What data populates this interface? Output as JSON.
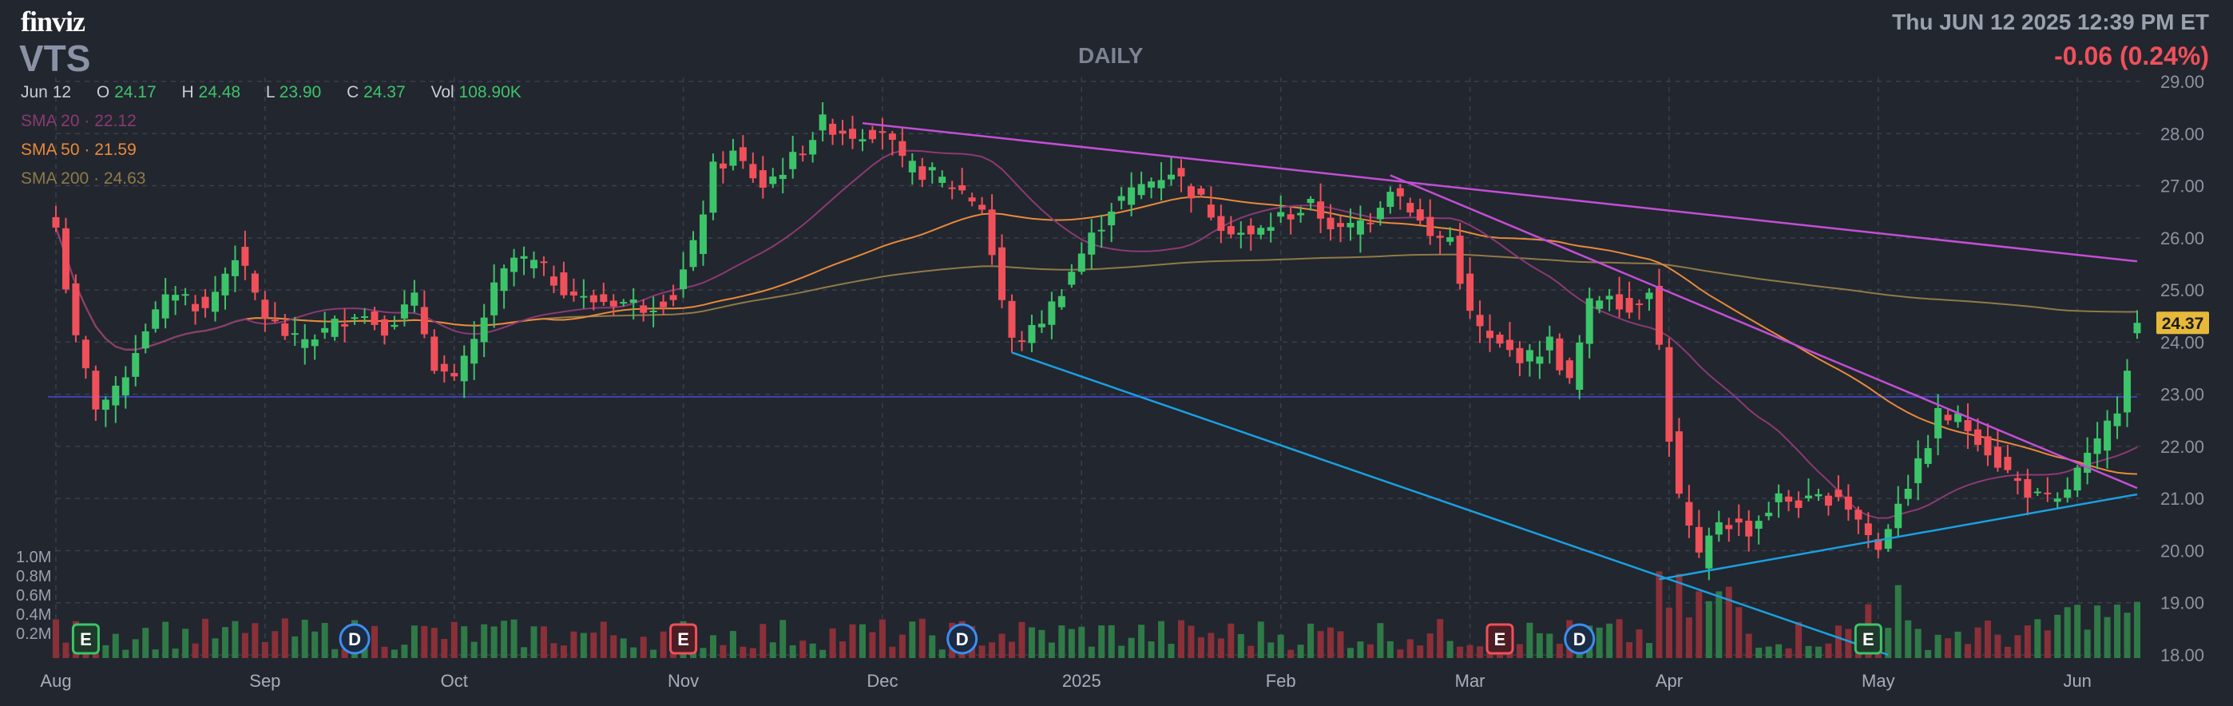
{
  "header": {
    "logo": "finviz",
    "ticker": "VTS",
    "timeframe": "DAILY",
    "datetime": "Thu JUN 12 2025 12:39 PM ET",
    "change": "-0.06 (0.24%)"
  },
  "ohlc": {
    "date": "Jun 12",
    "open_label": "O",
    "open": "24.17",
    "high_label": "H",
    "high": "24.48",
    "low_label": "L",
    "low": "23.90",
    "close_label": "C",
    "close": "24.37",
    "vol_label": "Vol",
    "volume": "108.90K"
  },
  "sma": [
    {
      "label": "SMA 20",
      "value": "22.12",
      "color": "#8a3a74"
    },
    {
      "label": "SMA 50",
      "value": "21.59",
      "color": "#e88a3a"
    },
    {
      "label": "SMA 200",
      "value": "24.63",
      "color": "#8f7a48"
    }
  ],
  "colors": {
    "background": "#22262f",
    "grid": "#3a3f4b",
    "up": "#3cc46a",
    "down": "#f0505a",
    "trendline_magenta": "#c34fd4",
    "trendline_blue": "#1aa0e0",
    "price_tag_bg": "#e6b93a"
  },
  "chart_data": {
    "type": "candlestick",
    "y_axis": {
      "min": 18,
      "max": 29,
      "ticks": [
        "18.00",
        "19.00",
        "20.00",
        "21.00",
        "22.00",
        "23.00",
        "24.00",
        "25.00",
        "26.00",
        "27.00",
        "28.00",
        "29.00"
      ]
    },
    "volume_axis": {
      "ticks": [
        "0.2M",
        "0.4M",
        "0.6M",
        "0.8M",
        "1.0M"
      ]
    },
    "x_ticks": [
      {
        "label": "Aug",
        "index": 0
      },
      {
        "label": "Sep",
        "index": 21
      },
      {
        "label": "Oct",
        "index": 40
      },
      {
        "label": "Nov",
        "index": 63
      },
      {
        "label": "Dec",
        "index": 83
      },
      {
        "label": "2025",
        "index": 103
      },
      {
        "label": "Feb",
        "index": 123
      },
      {
        "label": "Mar",
        "index": 142
      },
      {
        "label": "Apr",
        "index": 162
      },
      {
        "label": "May",
        "index": 183
      },
      {
        "label": "Jun",
        "index": 203
      }
    ],
    "last_price": "24.37",
    "horizontal_line": 22.95,
    "trendlines": [
      {
        "color": "magenta",
        "from": {
          "index": 81,
          "price": 28.2
        },
        "to": {
          "index": 209,
          "price": 25.55
        }
      },
      {
        "color": "magenta",
        "from": {
          "index": 134,
          "price": 27.2
        },
        "to": {
          "index": 209,
          "price": 21.2
        }
      },
      {
        "color": "blue",
        "from": {
          "index": 96,
          "price": 23.8
        },
        "to": {
          "index": 184,
          "price": 18.0
        }
      },
      {
        "color": "blue",
        "from": {
          "index": 161,
          "price": 19.45
        },
        "to": {
          "index": 209,
          "price": 21.08
        }
      }
    ],
    "events": [
      {
        "type": "E",
        "color": "green",
        "index": 3
      },
      {
        "type": "D",
        "color": "blue",
        "index": 30
      },
      {
        "type": "E",
        "color": "red",
        "index": 63
      },
      {
        "type": "D",
        "color": "blue",
        "index": 91
      },
      {
        "type": "E",
        "color": "red",
        "index": 145
      },
      {
        "type": "D",
        "color": "blue",
        "index": 153
      },
      {
        "type": "E",
        "color": "green",
        "index": 182
      }
    ],
    "anchors": [
      [
        0,
        26.2
      ],
      [
        2,
        24.0
      ],
      [
        4,
        22.8
      ],
      [
        6,
        23.0
      ],
      [
        9,
        24.3
      ],
      [
        12,
        25.0
      ],
      [
        15,
        24.6
      ],
      [
        18,
        25.7
      ],
      [
        21,
        24.5
      ],
      [
        24,
        24.0
      ],
      [
        27,
        24.2
      ],
      [
        30,
        24.6
      ],
      [
        33,
        24.3
      ],
      [
        36,
        24.8
      ],
      [
        38,
        23.6
      ],
      [
        40,
        23.2
      ],
      [
        42,
        24.0
      ],
      [
        44,
        25.0
      ],
      [
        46,
        25.6
      ],
      [
        48,
        25.5
      ],
      [
        50,
        25.2
      ],
      [
        53,
        24.8
      ],
      [
        56,
        24.8
      ],
      [
        59,
        24.7
      ],
      [
        62,
        24.9
      ],
      [
        64,
        25.8
      ],
      [
        66,
        27.3
      ],
      [
        68,
        27.6
      ],
      [
        71,
        27.0
      ],
      [
        74,
        27.5
      ],
      [
        77,
        28.2
      ],
      [
        80,
        28.0
      ],
      [
        83,
        28.1
      ],
      [
        85,
        27.4
      ],
      [
        88,
        27.2
      ],
      [
        91,
        26.9
      ],
      [
        93,
        26.6
      ],
      [
        95,
        24.8
      ],
      [
        96,
        24.0
      ],
      [
        98,
        24.2
      ],
      [
        100,
        24.7
      ],
      [
        103,
        25.7
      ],
      [
        106,
        26.6
      ],
      [
        109,
        27.0
      ],
      [
        112,
        27.3
      ],
      [
        114,
        26.9
      ],
      [
        117,
        26.3
      ],
      [
        120,
        26.0
      ],
      [
        123,
        26.4
      ],
      [
        126,
        26.6
      ],
      [
        129,
        26.1
      ],
      [
        132,
        26.4
      ],
      [
        134,
        27.0
      ],
      [
        136,
        26.6
      ],
      [
        138,
        26.0
      ],
      [
        140,
        26.0
      ],
      [
        142,
        24.5
      ],
      [
        144,
        24.0
      ],
      [
        146,
        23.8
      ],
      [
        148,
        23.7
      ],
      [
        150,
        24.0
      ],
      [
        152,
        23.2
      ],
      [
        154,
        24.7
      ],
      [
        156,
        25.0
      ],
      [
        158,
        24.6
      ],
      [
        160,
        25.1
      ],
      [
        161,
        23.9
      ],
      [
        162,
        22.2
      ],
      [
        163,
        21.0
      ],
      [
        165,
        19.8
      ],
      [
        167,
        20.6
      ],
      [
        170,
        20.4
      ],
      [
        173,
        21.0
      ],
      [
        176,
        20.9
      ],
      [
        179,
        21.1
      ],
      [
        181,
        20.6
      ],
      [
        183,
        20.0
      ],
      [
        185,
        21.0
      ],
      [
        187,
        21.6
      ],
      [
        189,
        22.6
      ],
      [
        191,
        22.5
      ],
      [
        193,
        22.2
      ],
      [
        195,
        21.7
      ],
      [
        197,
        21.3
      ],
      [
        199,
        21.0
      ],
      [
        201,
        20.9
      ],
      [
        203,
        21.5
      ],
      [
        205,
        22.0
      ],
      [
        207,
        22.8
      ],
      [
        208,
        23.6
      ],
      [
        209,
        24.37
      ]
    ]
  }
}
